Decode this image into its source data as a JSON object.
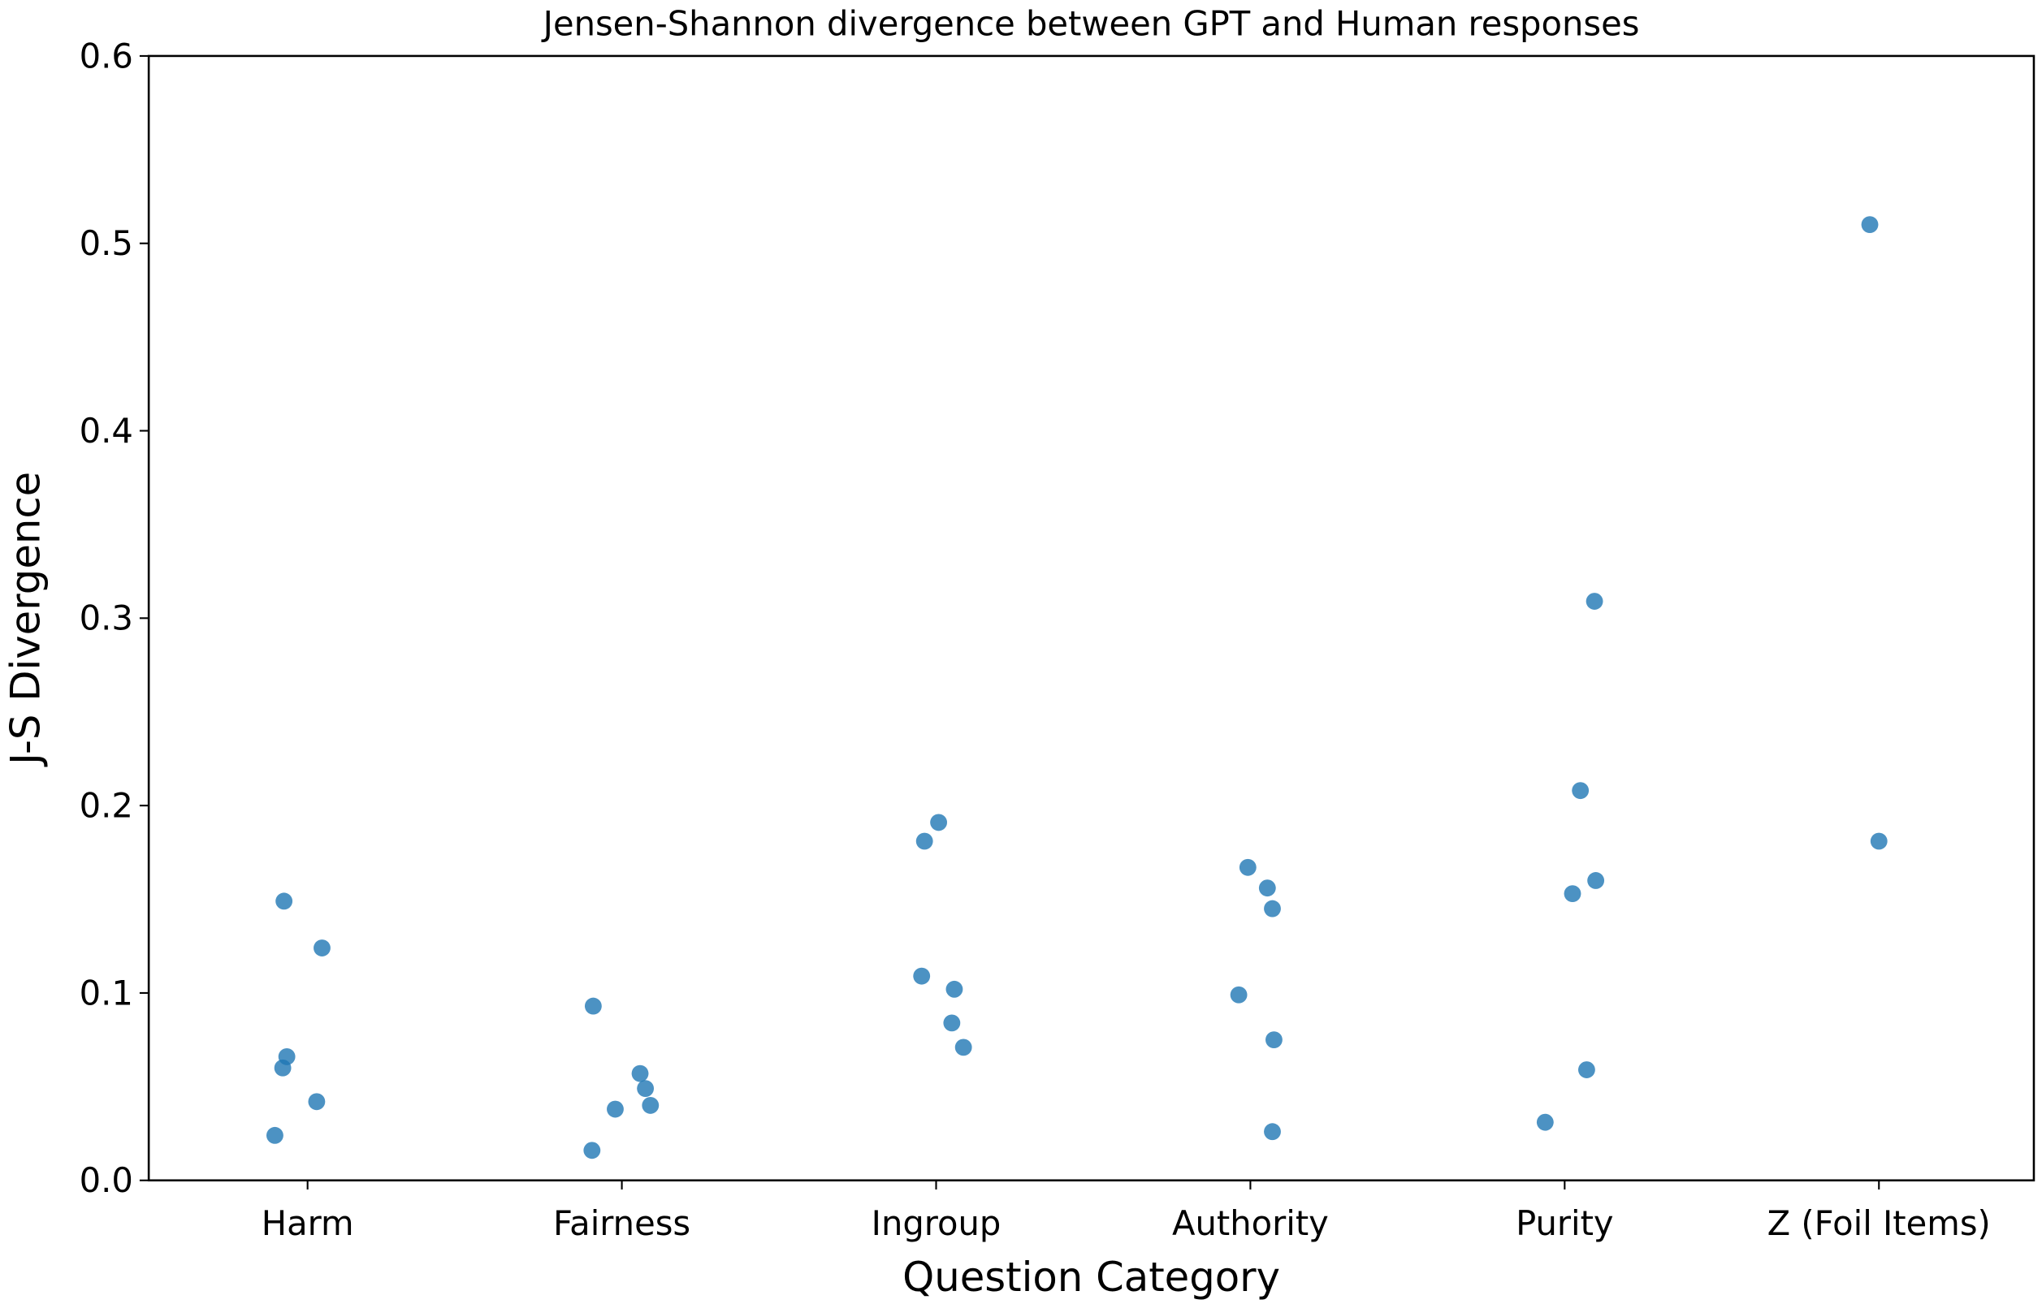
{
  "chart_data": {
    "type": "scatter",
    "title": "Jensen-Shannon divergence between GPT and Human responses",
    "xlabel": "Question Category",
    "ylabel": "J-S Divergence",
    "categories": [
      "Harm",
      "Fairness",
      "Ingroup",
      "Authority",
      "Purity",
      "Z (Foil Items)"
    ],
    "ylim": [
      0,
      0.6
    ],
    "yticks": [
      "0.0",
      "0.1",
      "0.2",
      "0.3",
      "0.4",
      "0.5",
      "0.6"
    ],
    "grid": false,
    "marker_color": "#1f77b4",
    "marker_alpha": 0.8,
    "series": [
      {
        "category": "Harm",
        "x": [
          -0.075,
          0.046,
          -0.066,
          -0.079,
          0.029,
          -0.104
        ],
        "y": [
          0.149,
          0.124,
          0.066,
          0.06,
          0.042,
          0.024
        ]
      },
      {
        "category": "Fairness",
        "x": [
          0.909,
          1.058,
          1.075,
          1.091,
          0.979,
          0.905
        ],
        "y": [
          0.093,
          0.057,
          0.049,
          0.04,
          0.038,
          0.016
        ]
      },
      {
        "category": "Ingroup",
        "x": [
          2.008,
          1.963,
          1.954,
          2.058,
          2.05,
          2.087
        ],
        "y": [
          0.191,
          0.181,
          0.109,
          0.102,
          0.084,
          0.071
        ]
      },
      {
        "category": "Authority",
        "x": [
          2.992,
          3.054,
          3.07,
          2.963,
          3.075,
          3.07
        ],
        "y": [
          0.167,
          0.156,
          0.145,
          0.099,
          0.075,
          0.026
        ]
      },
      {
        "category": "Purity",
        "x": [
          4.095,
          4.05,
          4.099,
          4.025,
          4.07,
          3.938
        ],
        "y": [
          0.309,
          0.208,
          0.16,
          0.153,
          0.059,
          0.031
        ]
      },
      {
        "category": "Z (Foil Items)",
        "x": [
          4.971,
          5.0
        ],
        "y": [
          0.51,
          0.181
        ]
      }
    ]
  }
}
